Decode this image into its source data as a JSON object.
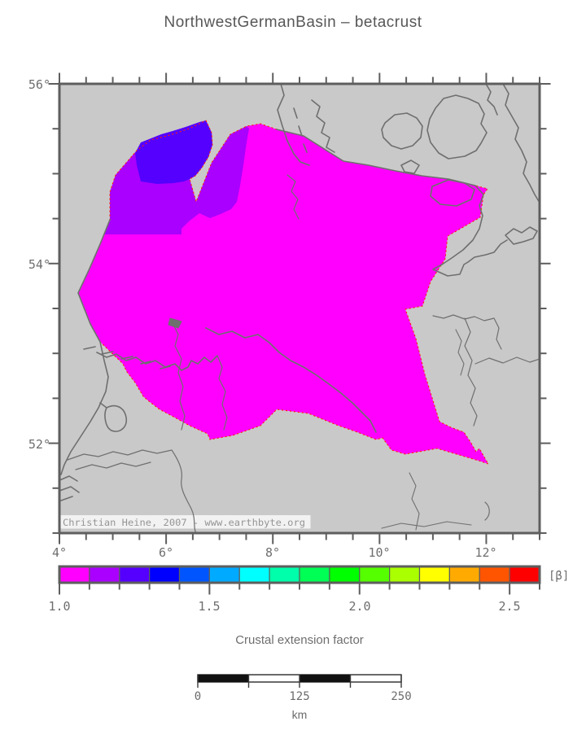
{
  "header": {
    "title": "NorthwestGermanBasin – betacrust"
  },
  "colors": {
    "page_bg": "#ffffff",
    "land": "#c9c9c9",
    "frame": "#5e5e5e",
    "coast": "#6f6f6f",
    "label_text": "#6e6e6e",
    "title_text": "#575757",
    "basin": "#ff00ff",
    "nw_zone": "#aa00ff",
    "inner_nw_zone": "#5500ff",
    "basin_outline": "#ff2200",
    "watermark_bg": "#f5f5f5",
    "watermark_text": "#959595",
    "scalebar_black": "#111111",
    "scalebar_white": "#ffffff"
  },
  "map": {
    "watermark": "Christian Heine, 2007 - www.earthbyte.org",
    "lat_labels": [
      "56°",
      "54°",
      "52°"
    ],
    "lon_labels": [
      "4°",
      "6°",
      "8°",
      "10°",
      "12°"
    ]
  },
  "colorbar": {
    "unit": "[β]",
    "tick_labels": [
      "1.0",
      "1.5",
      "2.0",
      "2.5"
    ],
    "caption": "Crustal extension factor",
    "colors": [
      "#ff00ff",
      "#aa00ff",
      "#5500ff",
      "#0000ff",
      "#0055ff",
      "#00aaff",
      "#00ffff",
      "#00ffaa",
      "#00ff55",
      "#00ff00",
      "#55ff00",
      "#aaff00",
      "#ffff00",
      "#ffaa00",
      "#ff5500",
      "#ff0000"
    ]
  },
  "scalebar": {
    "tick_labels": [
      "0",
      "125",
      "250"
    ],
    "unit": "km"
  },
  "chart_data": {
    "type": "map",
    "title": "NorthwestGermanBasin – betacrust",
    "variable": "Crustal extension factor (betacrust)",
    "unit": "β",
    "lon_range_deg": [
      4,
      13
    ],
    "lat_range_deg": [
      51,
      56
    ],
    "lon_major_ticks_deg": [
      4,
      6,
      8,
      10,
      12
    ],
    "lat_major_ticks_deg": [
      52,
      54,
      56
    ],
    "tick_interval_minor_deg": 0.5,
    "colorbar": {
      "min": 1.0,
      "max": 2.6,
      "cell_step": 0.1,
      "major_ticks": [
        1.0,
        1.5,
        2.0,
        2.5
      ],
      "colors": [
        "#ff00ff",
        "#aa00ff",
        "#5500ff",
        "#0000ff",
        "#0055ff",
        "#00aaff",
        "#00ffff",
        "#00ffaa",
        "#00ff55",
        "#00ff00",
        "#55ff00",
        "#aaff00",
        "#ffff00",
        "#ffaa00",
        "#ff5500",
        "#ff0000"
      ]
    },
    "region_beta_zones": [
      {
        "beta": "1.0–1.1",
        "color": "#ff00ff",
        "extent": "main basin area"
      },
      {
        "beta": "1.1–1.2",
        "color": "#aa00ff",
        "extent": "north-west lobe"
      },
      {
        "beta": "1.2–1.3",
        "color": "#5500ff",
        "extent": "inner north-west core"
      }
    ],
    "scalebar": {
      "ticks_km": [
        0,
        125,
        250
      ],
      "unit": "km"
    }
  }
}
